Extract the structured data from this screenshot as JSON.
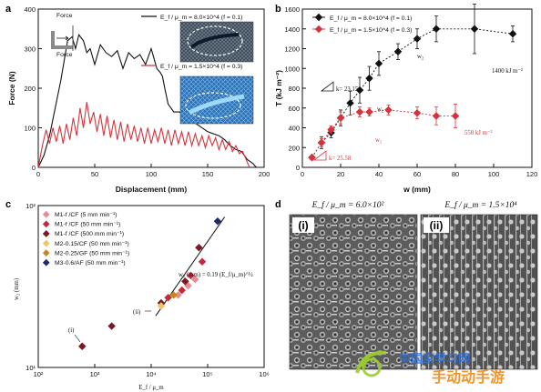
{
  "panel_a": {
    "letter": "a",
    "inset_labels": [
      "Force",
      "Force"
    ],
    "legend": [
      "E_f / μ_m = 8.0×10^4 (f = 0.1)",
      "E_f / μ_m = 1.5×10^4 (f = 0.3)"
    ],
    "colors": {
      "black": "#111111",
      "red": "#d8323b",
      "circle": "#ffffff"
    }
  },
  "panel_b": {
    "letter": "b",
    "legend": [
      "E_f / μ_m = 8.0×10^4 (f = 0.1)",
      "E_f / μ_m = 1.5×10^4 (f = 0.3)"
    ],
    "annotations": {
      "k_black": "k= 23.15",
      "k_red": "k= 25.58",
      "plateau_black": "1400 kJ m⁻²",
      "plateau_red": "550 kJ m⁻²",
      "w2a": "w₂",
      "w2b": "w₂",
      "w2c": "w₂"
    },
    "colors": {
      "black": "#111111",
      "red": "#d8323b"
    }
  },
  "panel_c": {
    "letter": "c",
    "legend": [
      {
        "label": "M1-f /CF (5 mm min⁻¹)",
        "color": "#e58b95"
      },
      {
        "label": "M1-f /CF (50 mm min⁻¹)",
        "color": "#c8283b"
      },
      {
        "label": "M1-f /CF (500 mm min⁻¹)",
        "color": "#7a1a24"
      },
      {
        "label": "M2-0.15/CF (50 mm min⁻¹)",
        "color": "#f0c46a"
      },
      {
        "label": "M2-0.25/GF (50 mm min⁻¹)",
        "color": "#c9861f"
      },
      {
        "label": "M3-0.6/AF (50 mm min⁻¹)",
        "color": "#1f2b6b"
      }
    ],
    "fit_label": "w₂ (mm) = 0.19 (E_f/μ_m)^½",
    "point_labels": {
      "i": "(i)",
      "ii": "(ii)"
    }
  },
  "panel_d": {
    "letter": "d",
    "left_header": "E_f / μ_m = 6.0×10²",
    "right_header": "E_f / μ_m = 1.5×10⁴",
    "left_label": "(i)",
    "right_label": "(ii)",
    "watermark_top": "中国家学习网",
    "watermark_bottom": "手动动手游"
  },
  "chart_data": [
    {
      "id": "a",
      "type": "line",
      "title": "",
      "xlabel": "Displacement (mm)",
      "ylabel": "Force (N)",
      "xlim": [
        0,
        200
      ],
      "ylim": [
        0,
        400
      ],
      "xticks": [
        0,
        50,
        100,
        150,
        200
      ],
      "yticks": [
        0,
        100,
        200,
        300,
        400
      ],
      "series": [
        {
          "name": "E_f / μ_m = 8.0×10^4 (f = 0.1)",
          "color": "#111111",
          "x": [
            0,
            5,
            10,
            15,
            20,
            23,
            26,
            30,
            33,
            36,
            40,
            43,
            46,
            50,
            55,
            60,
            65,
            70,
            75,
            80,
            85,
            90,
            95,
            100,
            102,
            105,
            108,
            110,
            112,
            115,
            120,
            125,
            130,
            140,
            150,
            160,
            165,
            170,
            175,
            180,
            185,
            190,
            193
          ],
          "y": [
            0,
            30,
            80,
            150,
            220,
            270,
            320,
            330,
            300,
            335,
            320,
            290,
            300,
            260,
            310,
            290,
            280,
            295,
            250,
            290,
            275,
            285,
            260,
            300,
            280,
            250,
            240,
            230,
            200,
            160,
            140,
            140,
            130,
            110,
            90,
            80,
            70,
            55,
            45,
            40,
            20,
            10,
            0
          ]
        },
        {
          "name": "E_f / μ_m = 1.5×10^4 (f = 0.3)",
          "color": "#d8323b",
          "x": [
            0,
            4,
            7,
            10,
            13,
            16,
            19,
            22,
            25,
            28,
            31,
            34,
            37,
            40,
            43,
            46,
            49,
            52,
            55,
            58,
            61,
            64,
            67,
            70,
            73,
            76,
            79,
            82,
            85,
            88,
            91,
            94,
            97,
            100,
            103,
            106,
            109,
            112,
            115,
            118,
            121,
            124,
            127,
            130,
            133,
            136,
            139,
            142,
            145,
            148,
            151,
            154,
            157,
            160,
            163,
            166,
            169,
            172,
            175,
            178,
            181,
            184,
            187
          ],
          "y": [
            0,
            60,
            95,
            60,
            100,
            65,
            105,
            60,
            110,
            70,
            125,
            80,
            150,
            100,
            165,
            110,
            140,
            90,
            135,
            80,
            130,
            75,
            120,
            70,
            115,
            65,
            110,
            70,
            105,
            65,
            100,
            60,
            100,
            60,
            95,
            65,
            100,
            60,
            95,
            55,
            95,
            60,
            90,
            55,
            90,
            55,
            85,
            55,
            80,
            50,
            80,
            55,
            75,
            45,
            70,
            45,
            65,
            40,
            55,
            35,
            40,
            20,
            0
          ]
        }
      ]
    },
    {
      "id": "b",
      "type": "scatter",
      "title": "",
      "xlabel": "w (mm)",
      "ylabel": "T (kJ m⁻²)",
      "xlim": [
        0,
        120
      ],
      "ylim": [
        0,
        1600
      ],
      "xticks": [
        0,
        20,
        40,
        60,
        80,
        100,
        120
      ],
      "yticks": [
        0,
        200,
        400,
        600,
        800,
        1000,
        1200,
        1400,
        1600
      ],
      "series": [
        {
          "name": "E_f / μ_m = 8.0×10^4 (f = 0.1)",
          "color": "#111111",
          "x": [
            5,
            10,
            15,
            20,
            25,
            30,
            35,
            40,
            50,
            60,
            70,
            90,
            110
          ],
          "y": [
            100,
            250,
            350,
            500,
            650,
            780,
            900,
            1050,
            1170,
            1300,
            1400,
            1400,
            1350
          ],
          "err": [
            20,
            60,
            50,
            80,
            120,
            130,
            120,
            120,
            80,
            100,
            130,
            250,
            80
          ]
        },
        {
          "name": "E_f / μ_m = 1.5×10^4 (f = 0.3)",
          "color": "#d8323b",
          "x": [
            5,
            10,
            15,
            20,
            30,
            35,
            45,
            60,
            70,
            80
          ],
          "y": [
            100,
            250,
            380,
            500,
            560,
            560,
            580,
            550,
            520,
            520
          ],
          "err": [
            20,
            40,
            40,
            60,
            50,
            40,
            50,
            60,
            90,
            120
          ]
        }
      ]
    },
    {
      "id": "c",
      "type": "scatter",
      "title": "",
      "xlabel": "E_f / μ_m",
      "ylabel": "w₂ (mm)",
      "xscale": "log",
      "yscale": "log",
      "xlim": [
        100,
        1000000
      ],
      "ylim": [
        10,
        100
      ],
      "xtick_labels": [
        "10²",
        "10³",
        "10⁴",
        "10⁵",
        "10⁶"
      ],
      "ytick_labels": [
        "10¹",
        "10²"
      ],
      "series": [
        {
          "name": "M1-f /CF (5 mm min⁻¹)",
          "color": "#e58b95",
          "x": [
            30000,
            45000,
            60000
          ],
          "y": [
            28,
            32,
            35
          ]
        },
        {
          "name": "M1-f /CF (50 mm min⁻¹)",
          "color": "#c8283b",
          "x": [
            20000,
            35000,
            50000,
            80000
          ],
          "y": [
            27,
            30,
            37,
            45
          ]
        },
        {
          "name": "M1-f /CF (500 mm min⁻¹)",
          "color": "#7a1a24",
          "x": [
            600,
            2000,
            15000,
            40000,
            70000
          ],
          "y": [
            13.5,
            18,
            25,
            34,
            55
          ]
        },
        {
          "name": "M2-0.15/CF (50 mm min⁻¹)",
          "color": "#f0c46a",
          "x": [
            15000
          ],
          "y": [
            24
          ]
        },
        {
          "name": "M2-0.25/GF (50 mm min⁻¹)",
          "color": "#c9861f",
          "x": [
            25000
          ],
          "y": [
            28
          ]
        },
        {
          "name": "M3-0.6/AF (50 mm min⁻¹)",
          "color": "#1f2b6b",
          "x": [
            150000
          ],
          "y": [
            80
          ]
        }
      ],
      "fit": {
        "coef": 0.19,
        "exponent": 0.5,
        "x_range": [
          12000,
          200000
        ]
      }
    }
  ]
}
